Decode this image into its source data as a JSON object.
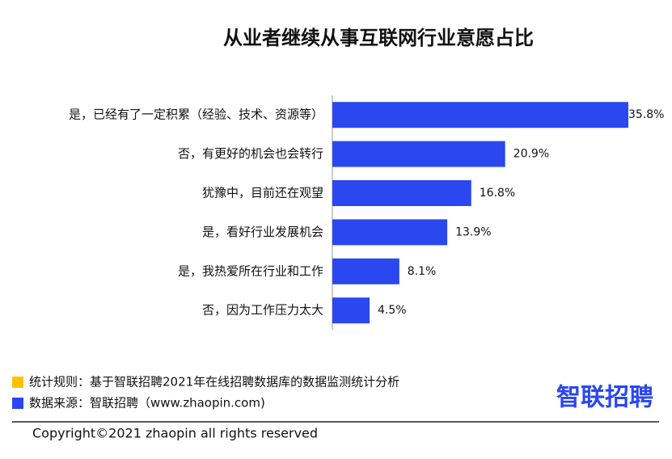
{
  "chart_data": {
    "type": "bar",
    "orientation": "horizontal",
    "title": "从业者继续从事互联网行业意愿占比",
    "categories": [
      "是，已经有了一定积累（经验、技术、资源等）",
      "否，有更好的机会也会转行",
      "犹豫中，目前还在观望",
      "是，看好行业发展机会",
      "是，我热爱所在行业和工作",
      "否，因为工作压力太大"
    ],
    "values": [
      35.8,
      20.9,
      16.8,
      13.9,
      8.1,
      4.5
    ],
    "value_labels": [
      "35.8%",
      "20.9%",
      "16.8%",
      "13.9%",
      "8.1%",
      "4.5%"
    ],
    "color": "#2a47f0"
  },
  "notes": [
    {
      "text": "统计规则：基于智联招聘2021年在线招聘数据库的数据监测统计分析",
      "color": "#ffc000"
    },
    {
      "text": "数据来源：智联招聘（www.zhaopin.com)",
      "color": "#2a47f0"
    }
  ],
  "logo": "智联招聘",
  "copyright": "Copyright©2021 zhaopin all rights reserved"
}
